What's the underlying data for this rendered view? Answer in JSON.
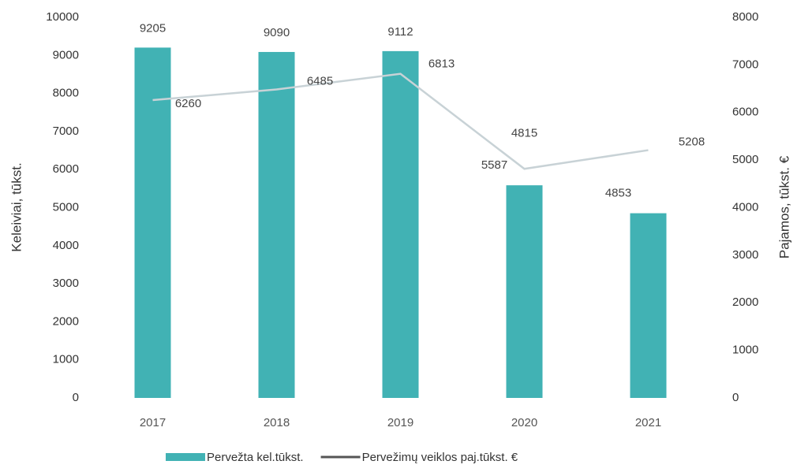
{
  "chart_data": {
    "type": "bar",
    "categories": [
      "2017",
      "2018",
      "2019",
      "2020",
      "2021"
    ],
    "series": [
      {
        "name": "Pervežta kel.tūkst.",
        "type": "bar",
        "axis": "y",
        "color": "#41b2b4",
        "values": [
          9205,
          9090,
          9112,
          5587,
          4853
        ]
      },
      {
        "name": "Pervežimų veiklos paj.tūkst. €",
        "type": "line",
        "axis": "y2",
        "color": "#c8d2d6",
        "values": [
          6260,
          6485,
          6813,
          4815,
          5208
        ]
      }
    ],
    "ylabel": "Keleiviai, tūkst.",
    "y2label": "Pajamos, tūkst. €",
    "ylim": [
      0,
      10000
    ],
    "yticks": [
      0,
      1000,
      2000,
      3000,
      4000,
      5000,
      6000,
      7000,
      8000,
      9000,
      10000
    ],
    "y2lim": [
      0,
      8000
    ],
    "y2ticks": [
      0,
      1000,
      2000,
      3000,
      4000,
      5000,
      6000,
      7000,
      8000
    ],
    "legend": "bottom"
  }
}
